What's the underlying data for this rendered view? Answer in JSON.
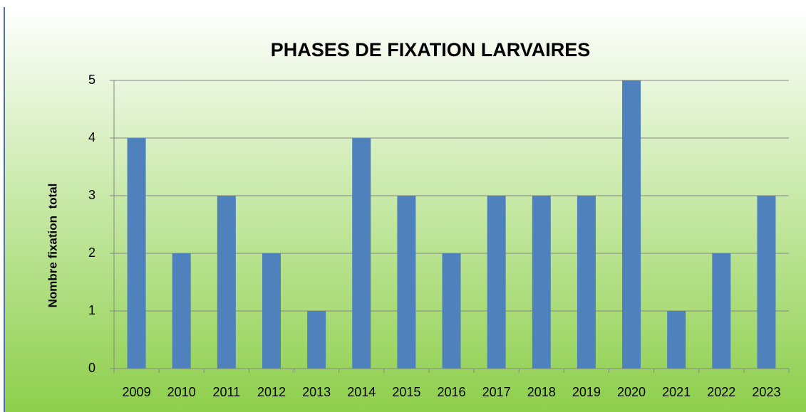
{
  "chart_data": {
    "type": "bar",
    "title": "PHASES DE FIXATION LARVAIRES",
    "y_label": "Nombre fixation  total",
    "categories": [
      "2009",
      "2010",
      "2011",
      "2012",
      "2013",
      "2014",
      "2015",
      "2016",
      "2017",
      "2018",
      "2019",
      "2020",
      "2021",
      "2022",
      "2023"
    ],
    "values": [
      4,
      2,
      3,
      2,
      1,
      4,
      3,
      2,
      3,
      3,
      3,
      5,
      1,
      2,
      3
    ],
    "color": "#4f81bd",
    "ylim": [
      0,
      5
    ],
    "yticks": [
      0,
      1,
      2,
      3,
      4,
      5
    ],
    "grid": true
  }
}
